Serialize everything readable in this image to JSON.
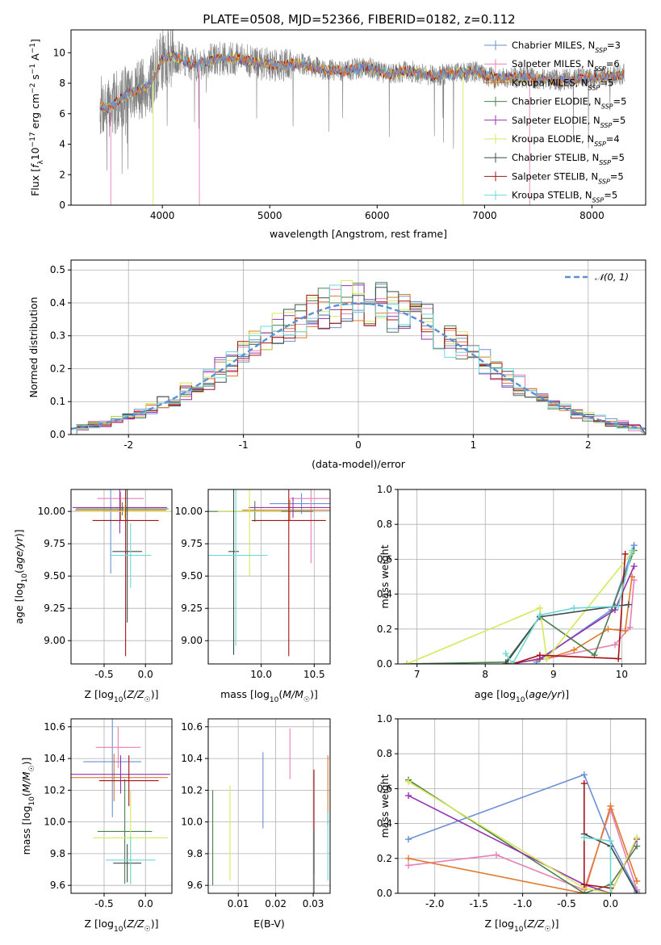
{
  "title": "PLATE=0508, MJD=52366, FIBERID=0182, z=0.112",
  "colors": {
    "Chabrier MILES": "#6a8fd6",
    "Salpeter MILES": "#e87fb5",
    "Kroupa MILES": "#e07a2c",
    "Chabrier ELODIE": "#4e7f4e",
    "Salpeter ELODIE": "#9432b0",
    "Kroupa ELODIE": "#d6e85a",
    "Chabrier STELIB": "#3d4d4d",
    "Salpeter STELIB": "#a51414",
    "Kroupa STELIB": "#6ed8d8",
    "data": "#808080",
    "normal": "#5a8fd6"
  },
  "chart_data": [
    {
      "type": "line",
      "xlabel": "wavelength [Angstrom, rest frame]",
      "ylabel": "Flux [f_λ10^-17 erg cm^-2 s^-1 A^-1]",
      "xlim": [
        3150,
        8500
      ],
      "ylim": [
        0,
        11.5
      ],
      "xticks": [
        4000,
        5000,
        6000,
        7000,
        8000
      ],
      "yticks": [
        0,
        2,
        4,
        6,
        8,
        10
      ],
      "legend_position": "right",
      "legend": [
        {
          "name": "Chabrier MILES",
          "pre": "Chabrier MILES, N",
          "post": "=3"
        },
        {
          "name": "Salpeter MILES",
          "pre": "Salpeter MILES, N",
          "post": "=6"
        },
        {
          "name": "Kroupa MILES",
          "pre": "Kroupa MILES, N",
          "post": "=5"
        },
        {
          "name": "Chabrier ELODIE",
          "pre": "Chabrier ELODIE, N",
          "post": "=5"
        },
        {
          "name": "Salpeter ELODIE",
          "pre": "Salpeter ELODIE, N",
          "post": "=5"
        },
        {
          "name": "Kroupa ELODIE",
          "pre": "Kroupa ELODIE, N",
          "post": "=4"
        },
        {
          "name": "Chabrier STELIB",
          "pre": "Chabrier STELIB, N",
          "post": "=5"
        },
        {
          "name": "Salpeter STELIB",
          "pre": "Salpeter STELIB, N",
          "post": "=5"
        },
        {
          "name": "Kroupa STELIB",
          "pre": "Kroupa STELIB, N",
          "post": "=5"
        }
      ],
      "legend_sub": "SSP",
      "continuum": {
        "x": [
          3400,
          3500,
          3600,
          3700,
          3800,
          3900,
          4000,
          4100,
          4200,
          4300,
          4500,
          4700,
          4900,
          5100,
          5300,
          5500,
          5700,
          5900,
          6100,
          6300,
          6500,
          6700,
          6900,
          7100,
          7300,
          7500,
          7700,
          7900,
          8100,
          8300
        ],
        "y": [
          6.6,
          6.3,
          6.9,
          7.4,
          7.6,
          8.0,
          9.6,
          9.8,
          9.5,
          9.2,
          9.6,
          9.6,
          9.3,
          9.2,
          9.3,
          8.9,
          8.8,
          9.1,
          8.6,
          8.8,
          8.5,
          8.6,
          8.8,
          8.3,
          8.4,
          8.3,
          8.2,
          8.3,
          8.4,
          8.6
        ]
      }
    },
    {
      "type": "bar",
      "xlabel": "(data-model)/error",
      "ylabel": "Normed distribution",
      "xlim": [
        -2.5,
        2.5
      ],
      "ylim": [
        0,
        0.53
      ],
      "xticks": [
        -2,
        -1,
        0,
        1,
        2
      ],
      "yticks": [
        0.0,
        0.1,
        0.2,
        0.3,
        0.4,
        0.5
      ],
      "legend": [
        {
          "pre": "𝒩(0, 1)",
          "name": "normal"
        }
      ],
      "legend_position": "top-right",
      "bins": [
        -2.4,
        -2.3,
        -2.2,
        -2.1,
        -2.0,
        -1.9,
        -1.8,
        -1.7,
        -1.6,
        -1.5,
        -1.4,
        -1.3,
        -1.2,
        -1.1,
        -1.0,
        -0.9,
        -0.8,
        -0.7,
        -0.6,
        -0.5,
        -0.4,
        -0.3,
        -0.2,
        -0.1,
        0.0,
        0.1,
        0.2,
        0.3,
        0.4,
        0.5,
        0.6,
        0.7,
        0.8,
        0.9,
        1.0,
        1.1,
        1.2,
        1.3,
        1.4,
        1.5,
        1.6,
        1.7,
        1.8,
        1.9,
        2.0,
        2.1,
        2.2,
        2.3,
        2.4
      ],
      "binwidth": 0.1
    },
    {
      "type": "scatter",
      "xlabel": "Z [log10(Z/Z☉)]",
      "ylabel": "age  [log10(age/yr)]",
      "xlim": [
        -0.9,
        0.32
      ],
      "ylim": [
        8.82,
        10.17
      ],
      "xticks": [
        -0.5,
        0.0
      ],
      "yticks": [
        9.0,
        9.25,
        9.5,
        9.75,
        10.0
      ],
      "points": [
        {
          "name": "Chabrier MILES",
          "x": -0.42,
          "xerr": 0.1,
          "y": 10.0,
          "yerr": 0.48
        },
        {
          "name": "Salpeter MILES",
          "x": -0.3,
          "xerr": 0.28,
          "y": 10.1,
          "yerr": 0.05
        },
        {
          "name": "Kroupa MILES",
          "x": -0.3,
          "xerr": 0.55,
          "y": 10.01,
          "yerr": 0.08
        },
        {
          "name": "Chabrier ELODIE",
          "x": -0.28,
          "xerr": 0.56,
          "y": 10.02,
          "yerr": 0.05
        },
        {
          "name": "Salpeter ELODIE",
          "x": -0.31,
          "xerr": 0.57,
          "y": 10.03,
          "yerr": 0.2
        },
        {
          "name": "Kroupa ELODIE",
          "x": -0.25,
          "xerr": 0.55,
          "y": 10.0,
          "yerr": 0.05
        },
        {
          "name": "Chabrier STELIB",
          "x": -0.22,
          "xerr": 0.18,
          "y": 9.69,
          "yerr": 0.55
        },
        {
          "name": "Salpeter STELIB",
          "x": -0.24,
          "xerr": 0.4,
          "y": 9.93,
          "yerr": 1.05
        },
        {
          "name": "Kroupa STELIB",
          "x": -0.18,
          "xerr": 0.25,
          "y": 9.66,
          "yerr": 0.25
        }
      ]
    },
    {
      "type": "scatter",
      "xlabel": "mass [log10(M/M☉)]",
      "ylabel": "",
      "xlim": [
        9.5,
        10.65
      ],
      "ylim": [
        8.82,
        10.17
      ],
      "xticks": [
        10.0,
        10.5
      ],
      "yticks": [
        9.0,
        9.25,
        9.5,
        9.75,
        10.0
      ],
      "points": [
        {
          "name": "Chabrier MILES",
          "x": 10.38,
          "xerr": 0.3,
          "y": 10.06,
          "yerr": 0.08
        },
        {
          "name": "Salpeter MILES",
          "x": 10.47,
          "xerr": 0.2,
          "y": 10.1,
          "yerr": 0.5
        },
        {
          "name": "Kroupa MILES",
          "x": 10.27,
          "xerr": 0.45,
          "y": 10.01,
          "yerr": 0.08
        },
        {
          "name": "Chabrier ELODIE",
          "x": 9.94,
          "xerr": 0.55,
          "y": 10.0,
          "yerr": 0.08
        },
        {
          "name": "Salpeter ELODIE",
          "x": 10.3,
          "xerr": 0.42,
          "y": 10.03,
          "yerr": 0.08
        },
        {
          "name": "Kroupa ELODIE",
          "x": 9.89,
          "xerr": 0.3,
          "y": 10.0,
          "yerr": 0.5
        },
        {
          "name": "Chabrier STELIB",
          "x": 9.74,
          "xerr": 0.05,
          "y": 9.69,
          "yerr": 0.8
        },
        {
          "name": "Salpeter STELIB",
          "x": 10.26,
          "xerr": 0.35,
          "y": 9.93,
          "yerr": 1.05
        },
        {
          "name": "Kroupa STELIB",
          "x": 9.76,
          "xerr": 0.3,
          "y": 9.66,
          "yerr": 0.7
        }
      ]
    },
    {
      "type": "line",
      "xlabel": "age  [log10(age/yr)]",
      "ylabel": "mass weight",
      "xlim": [
        6.72,
        10.35
      ],
      "ylim": [
        0,
        1.0
      ],
      "xticks": [
        7,
        8,
        9,
        10
      ],
      "yticks": [
        0.0,
        0.2,
        0.4,
        0.6,
        0.8,
        1.0
      ],
      "series": [
        {
          "name": "Chabrier MILES",
          "x": [
            8.75,
            9.85,
            10.18
          ],
          "y": [
            0.01,
            0.31,
            0.68
          ]
        },
        {
          "name": "Salpeter MILES",
          "x": [
            8.9,
            9.9,
            10.12,
            10.18
          ],
          "y": [
            0.03,
            0.11,
            0.21,
            0.48
          ]
        },
        {
          "name": "Kroupa MILES",
          "x": [
            8.3,
            8.9,
            9.3,
            9.8,
            10.05,
            10.15
          ],
          "y": [
            0.0,
            0.03,
            0.08,
            0.2,
            0.19,
            0.5
          ]
        },
        {
          "name": "Chabrier ELODIE",
          "x": [
            6.85,
            8.3,
            8.8,
            9.6,
            10.18
          ],
          "y": [
            0.0,
            0.01,
            0.27,
            0.05,
            0.65
          ]
        },
        {
          "name": "Salpeter ELODIE",
          "x": [
            8.4,
            8.8,
            9.9,
            10.18
          ],
          "y": [
            0.0,
            0.03,
            0.31,
            0.56
          ]
        },
        {
          "name": "Kroupa ELODIE",
          "x": [
            6.85,
            8.8,
            8.9,
            10.15
          ],
          "y": [
            0.0,
            0.32,
            0.03,
            0.64
          ]
        },
        {
          "name": "Chabrier STELIB",
          "x": [
            8.3,
            8.8,
            9.9,
            10.1
          ],
          "y": [
            0.0,
            0.27,
            0.33,
            0.34
          ]
        },
        {
          "name": "Salpeter STELIB",
          "x": [
            8.4,
            8.8,
            9.95,
            10.05
          ],
          "y": [
            0.0,
            0.05,
            0.03,
            0.63
          ]
        },
        {
          "name": "Kroupa STELIB",
          "x": [
            8.3,
            8.4,
            8.8,
            9.3,
            9.95,
            10.15
          ],
          "y": [
            0.06,
            0.0,
            0.28,
            0.32,
            0.33,
            0.65
          ]
        }
      ]
    },
    {
      "type": "scatter",
      "xlabel": "Z [log10(Z/Z☉)]",
      "ylabel": "mass [log10(M/M☉)]",
      "xlim": [
        -0.9,
        0.32
      ],
      "ylim": [
        9.55,
        10.65
      ],
      "xticks": [
        -0.5,
        0.0
      ],
      "yticks": [
        9.6,
        9.8,
        10.0,
        10.2,
        10.4,
        10.6
      ],
      "points": [
        {
          "name": "Chabrier MILES",
          "x": -0.4,
          "xerr": 0.35,
          "y": 10.38,
          "yerr": 0.35
        },
        {
          "name": "Salpeter MILES",
          "x": -0.33,
          "xerr": 0.27,
          "y": 10.47,
          "yerr": 0.13
        },
        {
          "name": "Kroupa MILES",
          "x": -0.38,
          "xerr": 0.65,
          "y": 10.28,
          "yerr": 0.15
        },
        {
          "name": "Chabrier ELODIE",
          "x": -0.25,
          "xerr": 0.33,
          "y": 9.94,
          "yerr": 0.33
        },
        {
          "name": "Salpeter ELODIE",
          "x": -0.3,
          "xerr": 0.6,
          "y": 10.3,
          "yerr": 0.12
        },
        {
          "name": "Kroupa ELODIE",
          "x": -0.18,
          "xerr": 0.45,
          "y": 9.9,
          "yerr": 0.3
        },
        {
          "name": "Chabrier STELIB",
          "x": -0.22,
          "xerr": 0.17,
          "y": 9.74,
          "yerr": 0.12
        },
        {
          "name": "Salpeter STELIB",
          "x": -0.2,
          "xerr": 0.36,
          "y": 10.26,
          "yerr": 0.16
        },
        {
          "name": "Kroupa STELIB",
          "x": -0.18,
          "xerr": 0.3,
          "y": 9.76,
          "yerr": 0.15
        }
      ]
    },
    {
      "type": "scatter",
      "xlabel": "E(B-V)",
      "ylabel": "",
      "xlim": [
        0.002,
        0.0345
      ],
      "ylim": [
        9.55,
        10.65
      ],
      "xticks": [
        0.01,
        0.02,
        0.03
      ],
      "yticks": [
        9.6,
        9.8,
        10.0,
        10.2,
        10.4,
        10.6
      ],
      "points": [
        {
          "name": "Chabrier ELODIE",
          "x": 0.0032,
          "y": 9.9,
          "yerr": 0.3
        },
        {
          "name": "Kroupa ELODIE",
          "x": 0.0078,
          "y": 9.93,
          "yerr": 0.3
        },
        {
          "name": "Chabrier MILES",
          "x": 0.0166,
          "y": 10.2,
          "yerr": 0.24
        },
        {
          "name": "Salpeter MILES",
          "x": 0.0238,
          "y": 10.43,
          "yerr": 0.16
        },
        {
          "name": "Salpeter STELIB",
          "x": 0.0302,
          "y": 10.0,
          "yerr": 0.33
        },
        {
          "name": "Chabrier STELIB",
          "x": 0.0302,
          "y": 9.75,
          "yerr": 0.2
        },
        {
          "name": "Kroupa MILES",
          "x": 0.0339,
          "y": 10.2,
          "yerr": 0.22
        },
        {
          "name": "Kroupa STELIB",
          "x": 0.0339,
          "y": 9.85,
          "yerr": 0.22
        }
      ]
    },
    {
      "type": "line",
      "xlabel": "Z [log10(Z/Z☉)]",
      "ylabel": "mass weight",
      "xlim": [
        -2.42,
        0.4
      ],
      "ylim": [
        0,
        1.0
      ],
      "xticks": [
        -2.0,
        -1.5,
        -1.0,
        -0.5,
        0.0
      ],
      "yticks": [
        0.0,
        0.2,
        0.4,
        0.6,
        0.8,
        1.0
      ],
      "series": [
        {
          "name": "Chabrier MILES",
          "x": [
            -2.3,
            -0.3,
            0.0,
            0.3
          ],
          "y": [
            0.31,
            0.68,
            0.3,
            0.01
          ]
        },
        {
          "name": "Salpeter MILES",
          "x": [
            -2.3,
            -1.3,
            -0.3,
            0.0,
            0.3
          ],
          "y": [
            0.16,
            0.22,
            0.02,
            0.48,
            0.02
          ]
        },
        {
          "name": "Kroupa MILES",
          "x": [
            -2.3,
            -0.3,
            0.0,
            0.3
          ],
          "y": [
            0.2,
            0.0,
            0.5,
            0.07
          ]
        },
        {
          "name": "Chabrier ELODIE",
          "x": [
            -2.3,
            -0.3,
            0.0,
            0.3
          ],
          "y": [
            0.65,
            0.0,
            0.05,
            0.27
          ]
        },
        {
          "name": "Salpeter ELODIE",
          "x": [
            -2.3,
            -0.3,
            0.0,
            0.3
          ],
          "y": [
            0.56,
            0.05,
            0.0,
            0.31
          ]
        },
        {
          "name": "Kroupa ELODIE",
          "x": [
            -2.3,
            -0.3,
            0.0,
            0.3
          ],
          "y": [
            0.64,
            0.03,
            0.0,
            0.32
          ]
        },
        {
          "name": "Chabrier STELIB",
          "x": [
            -0.3,
            0.0,
            0.3
          ],
          "y": [
            0.34,
            0.27,
            0.0
          ]
        },
        {
          "name": "Salpeter STELIB",
          "x": [
            -0.3,
            -0.3,
            0.0
          ],
          "y": [
            0.63,
            0.05,
            0.03
          ]
        },
        {
          "name": "Kroupa STELIB",
          "x": [
            -0.3,
            0.0,
            0.0
          ],
          "y": [
            0.32,
            0.3,
            0.0
          ]
        }
      ]
    }
  ]
}
